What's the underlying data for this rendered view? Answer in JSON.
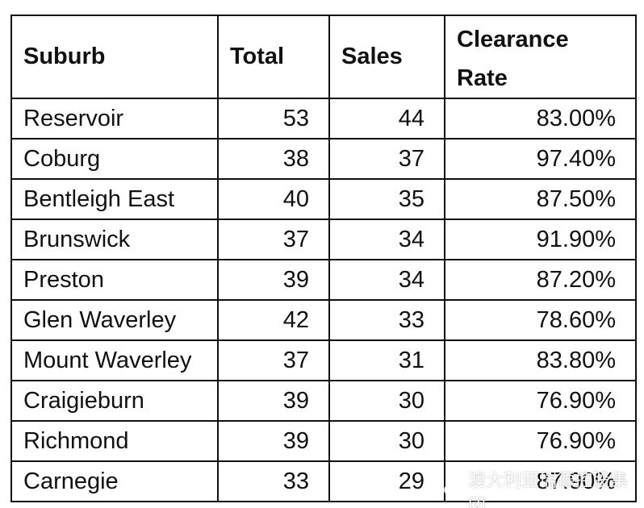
{
  "table": {
    "headers": [
      "Suburb",
      "Total",
      "Sales",
      "Clearance Rate"
    ],
    "rows": [
      [
        "Reservoir",
        "53",
        "44",
        "83.00%"
      ],
      [
        "Coburg",
        "38",
        "37",
        "97.40%"
      ],
      [
        "Bentleigh East",
        "40",
        "35",
        "87.50%"
      ],
      [
        "Brunswick",
        "37",
        "34",
        "91.90%"
      ],
      [
        "Preston",
        "39",
        "34",
        "87.20%"
      ],
      [
        "Glen Waverley",
        "42",
        "33",
        "78.60%"
      ],
      [
        "Mount Waverley",
        "37",
        "31",
        "83.80%"
      ],
      [
        "Craigieburn",
        "39",
        "30",
        "76.90%"
      ],
      [
        "Richmond",
        "39",
        "30",
        "76.90%"
      ],
      [
        "Carnegie",
        "33",
        "29",
        "87.90%"
      ]
    ]
  },
  "watermark": {
    "text": "澳大利亚瑞德控股集团",
    "icon": "wechat-icon"
  }
}
